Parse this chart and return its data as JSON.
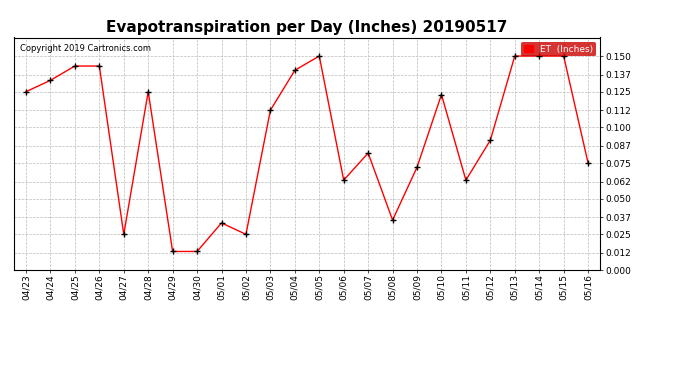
{
  "title": "Evapotranspiration per Day (Inches) 20190517",
  "copyright_text": "Copyright 2019 Cartronics.com",
  "legend_label": "ET  (Inches)",
  "x_labels": [
    "04/23",
    "04/24",
    "04/25",
    "04/26",
    "04/27",
    "04/28",
    "04/29",
    "04/30",
    "05/01",
    "05/02",
    "05/03",
    "05/04",
    "05/05",
    "05/06",
    "05/07",
    "05/08",
    "05/09",
    "05/10",
    "05/11",
    "05/12",
    "05/13",
    "05/14",
    "05/15",
    "05/16"
  ],
  "y_values": [
    0.125,
    0.133,
    0.143,
    0.143,
    0.025,
    0.125,
    0.013,
    0.013,
    0.033,
    0.025,
    0.112,
    0.14,
    0.15,
    0.063,
    0.082,
    0.035,
    0.072,
    0.123,
    0.063,
    0.091,
    0.15,
    0.15,
    0.15,
    0.075
  ],
  "line_color": "red",
  "marker_color": "black",
  "background_color": "#ffffff",
  "grid_color": "#bbbbbb",
  "ylim": [
    0.0,
    0.163
  ],
  "yticks": [
    0.0,
    0.012,
    0.025,
    0.037,
    0.05,
    0.062,
    0.075,
    0.087,
    0.1,
    0.112,
    0.125,
    0.137,
    0.15
  ],
  "title_fontsize": 11,
  "tick_fontsize": 6.5,
  "copyright_fontsize": 6,
  "legend_bg": "#cc0000",
  "legend_text_color": "white"
}
